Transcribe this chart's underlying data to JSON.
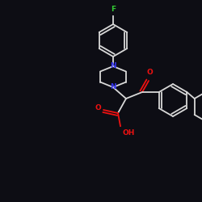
{
  "background_color": "#0d0d14",
  "bond_color": "#d8d8d8",
  "atom_colors": {
    "N": "#3333ee",
    "O": "#ee1111",
    "F": "#33cc33",
    "C": "#d8d8d8"
  },
  "lw": 1.3
}
